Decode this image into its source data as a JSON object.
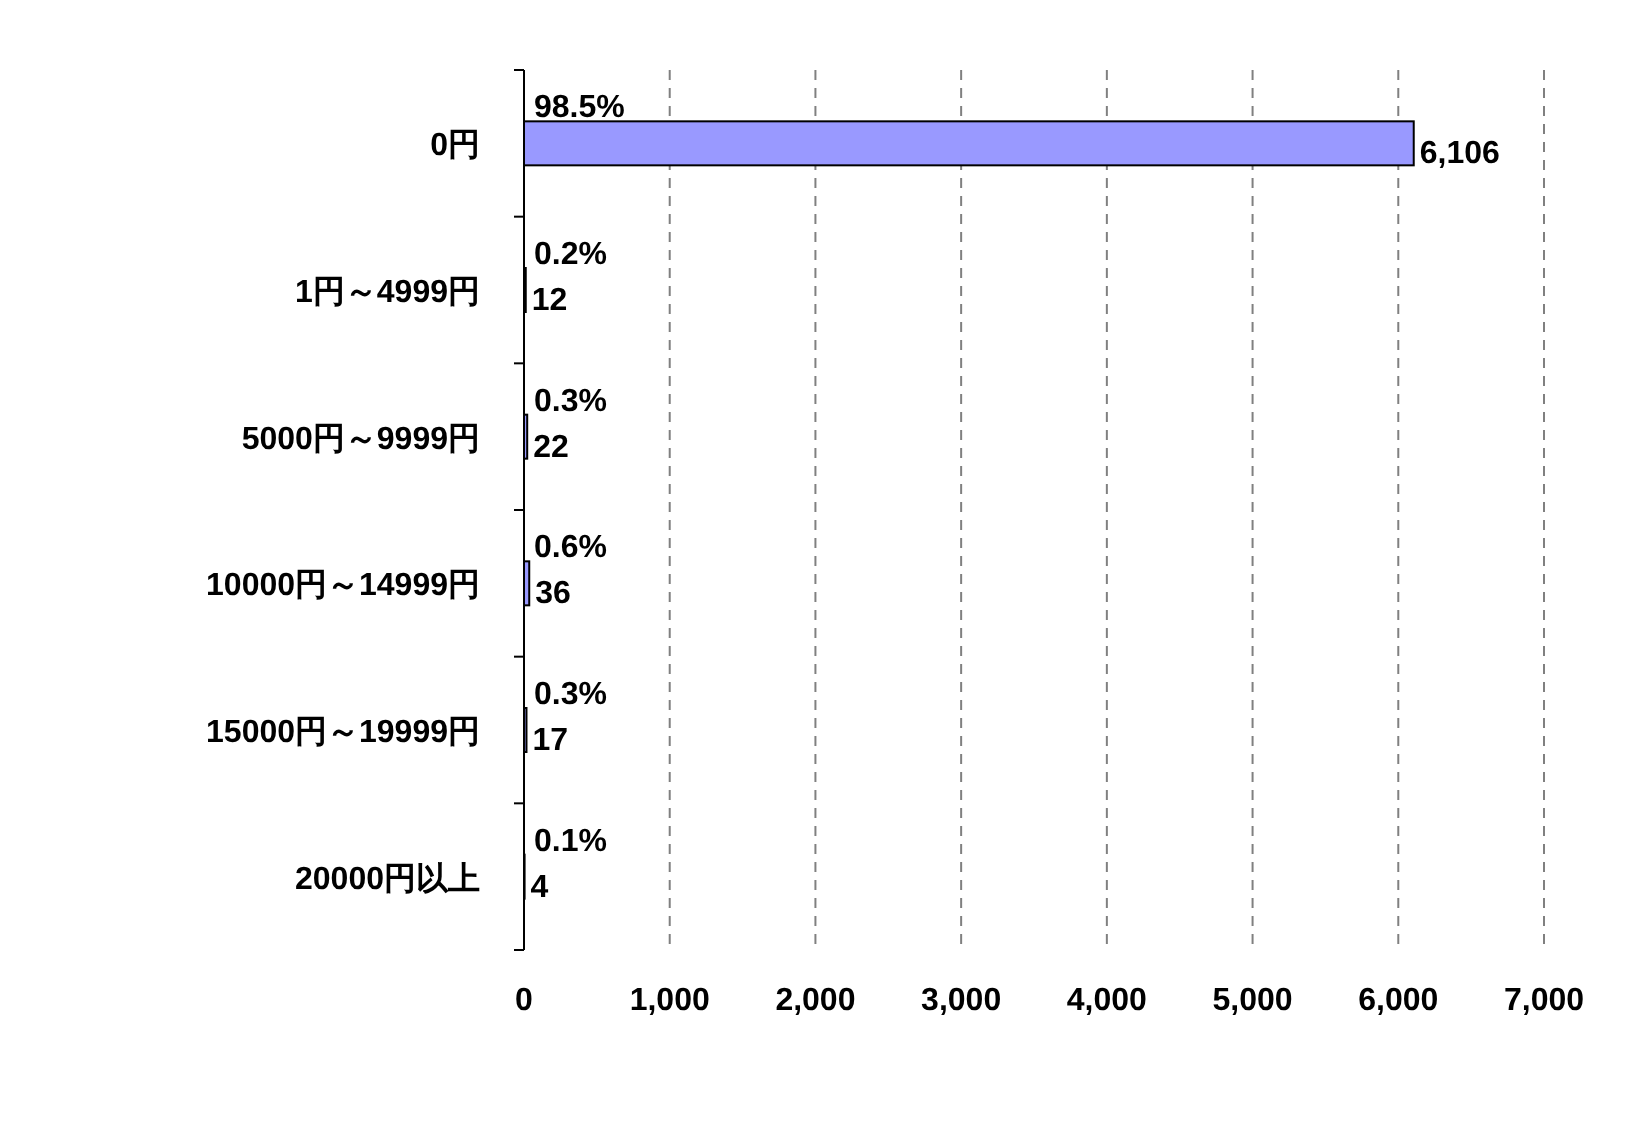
{
  "chart_data": {
    "type": "bar",
    "orientation": "horizontal",
    "categories": [
      "0円",
      "1円～4999円",
      "5000円～9999円",
      "10000円～14999円",
      "15000円～19999円",
      "20000円以上"
    ],
    "values": [
      6106,
      12,
      22,
      36,
      17,
      4
    ],
    "value_labels": [
      "6,106",
      "12",
      "22",
      "36",
      "17",
      "4"
    ],
    "annotations": [
      "98.5%",
      "0.2%",
      "0.3%",
      "0.6%",
      "0.3%",
      "0.1%"
    ],
    "color": "#9999ff",
    "xlim": [
      0,
      7000
    ],
    "xticks": [
      0,
      {
        "value": 1000,
        "label": "1,000"
      },
      {
        "value": 2000,
        "label": "2,000"
      },
      {
        "value": 3000,
        "label": "3,000"
      },
      {
        "value": 4000,
        "label": "4,000"
      },
      {
        "value": 5000,
        "label": "5,000"
      },
      {
        "value": 6000,
        "label": "6,000"
      },
      {
        "value": 7000,
        "label": "7,000"
      }
    ],
    "grid": "x"
  }
}
